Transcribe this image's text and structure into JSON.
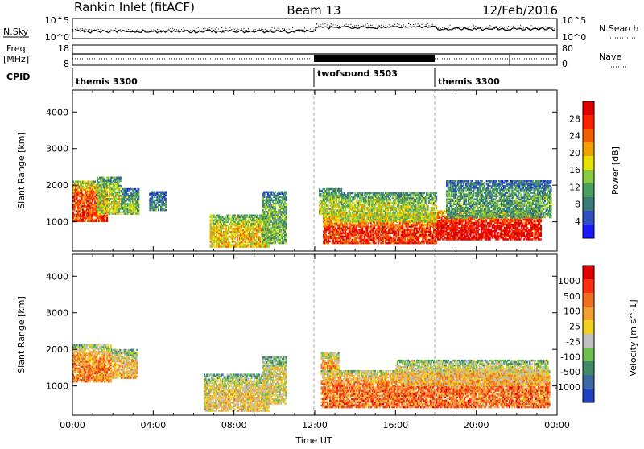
{
  "header": {
    "station": "Rankin Inlet (fitACF)",
    "beam": "Beam 13",
    "date": "12/Feb/2016"
  },
  "info_panels": {
    "nsky_label": "N.Sky",
    "nsky_ticks": [
      "10^5",
      "10^0"
    ],
    "nsearch_label": "N.Search",
    "nsearch_ticks": [
      "10^5",
      "10^0"
    ],
    "freq_label_1": "Freq.",
    "freq_label_2": "[MHz]",
    "freq_ticks": [
      "18",
      "8"
    ],
    "nave_label": "Nave",
    "nave_ticks": [
      "80",
      "0"
    ],
    "cpid_label": "CPID",
    "cpid_segments": [
      {
        "name": "themis 3300",
        "start_h": 0,
        "end_h": 12
      },
      {
        "name": "twofsound 3503",
        "start_h": 12,
        "end_h": 18
      },
      {
        "name": "themis 3300",
        "start_h": 18,
        "end_h": 24
      }
    ]
  },
  "chart_data": [
    {
      "type": "heatmap",
      "name": "Power",
      "xlabel": "",
      "ylabel": "Slant Range [km]",
      "xlim_hours": [
        0,
        24
      ],
      "ylim_km": [
        200,
        4600
      ],
      "yticks": [
        "1000",
        "2000",
        "3000",
        "4000"
      ],
      "colorbar": {
        "label": "Power [dB]",
        "tick_labels": [
          "4",
          "8",
          "12",
          "16",
          "20",
          "24",
          "28"
        ],
        "colors": [
          "#1a1aff",
          "#3050c0",
          "#3a7a7a",
          "#4aa060",
          "#88cc44",
          "#e8e000",
          "#f0a000",
          "#f06000",
          "#ff2000",
          "#e00000"
        ]
      },
      "regions": [
        {
          "t0": 0.0,
          "t1": 1.7,
          "r0": 1000,
          "r1": 2100,
          "level": 0.8
        },
        {
          "t0": 1.2,
          "t1": 2.4,
          "r0": 1200,
          "r1": 2200,
          "level": 0.5
        },
        {
          "t0": 2.4,
          "t1": 3.3,
          "r0": 1200,
          "r1": 1900,
          "level": 0.4
        },
        {
          "t0": 3.8,
          "t1": 4.6,
          "r0": 1300,
          "r1": 1800,
          "level": 0.3
        },
        {
          "t0": 6.8,
          "t1": 9.7,
          "r0": 300,
          "r1": 1200,
          "level": 0.6
        },
        {
          "t0": 9.4,
          "t1": 10.6,
          "r0": 400,
          "r1": 1800,
          "level": 0.4
        },
        {
          "t0": 12.2,
          "t1": 13.3,
          "r0": 1200,
          "r1": 1900,
          "level": 0.5
        },
        {
          "t0": 12.4,
          "t1": 18.0,
          "r0": 400,
          "r1": 1200,
          "level": 0.85
        },
        {
          "t0": 13.3,
          "t1": 18.0,
          "r0": 1000,
          "r1": 1800,
          "level": 0.5
        },
        {
          "t0": 18.0,
          "t1": 23.2,
          "r0": 500,
          "r1": 1300,
          "level": 0.95
        },
        {
          "t0": 18.5,
          "t1": 23.7,
          "r0": 1100,
          "r1": 2100,
          "level": 0.35
        }
      ]
    },
    {
      "type": "heatmap",
      "name": "Velocity",
      "xlabel": "Time UT",
      "ylabel": "Slant Range [km]",
      "xlim_hours": [
        0,
        24
      ],
      "ylim_km": [
        200,
        4600
      ],
      "xticks": [
        "00:00",
        "04:00",
        "08:00",
        "12:00",
        "16:00",
        "20:00",
        "00:00"
      ],
      "yticks": [
        "1000",
        "2000",
        "3000",
        "4000"
      ],
      "colorbar": {
        "label": "Velocity [m s^-1]",
        "tick_labels": [
          "1000",
          "500",
          "100",
          "25",
          "-25",
          "-100",
          "-500",
          "-1000"
        ],
        "colors": [
          "#2040c0",
          "#3a6aa0",
          "#3f8a6a",
          "#70c050",
          "#c0c0c0",
          "#f0d020",
          "#f0a030",
          "#f07020",
          "#ff3010",
          "#e00000"
        ]
      },
      "regions": [
        {
          "t0": 0.0,
          "t1": 1.9,
          "r0": 1100,
          "r1": 2100,
          "level": 0.7
        },
        {
          "t0": 1.9,
          "t1": 3.2,
          "r0": 1200,
          "r1": 2000,
          "level": 0.6
        },
        {
          "t0": 6.5,
          "t1": 9.7,
          "r0": 300,
          "r1": 1300,
          "level": 0.55
        },
        {
          "t0": 9.4,
          "t1": 10.6,
          "r0": 500,
          "r1": 1800,
          "level": 0.5
        },
        {
          "t0": 12.3,
          "t1": 13.2,
          "r0": 1300,
          "r1": 1900,
          "level": 0.7
        },
        {
          "t0": 12.3,
          "t1": 23.6,
          "r0": 400,
          "r1": 1400,
          "level": 0.75
        },
        {
          "t0": 16.0,
          "t1": 23.5,
          "r0": 1000,
          "r1": 1700,
          "level": 0.6
        }
      ]
    }
  ]
}
